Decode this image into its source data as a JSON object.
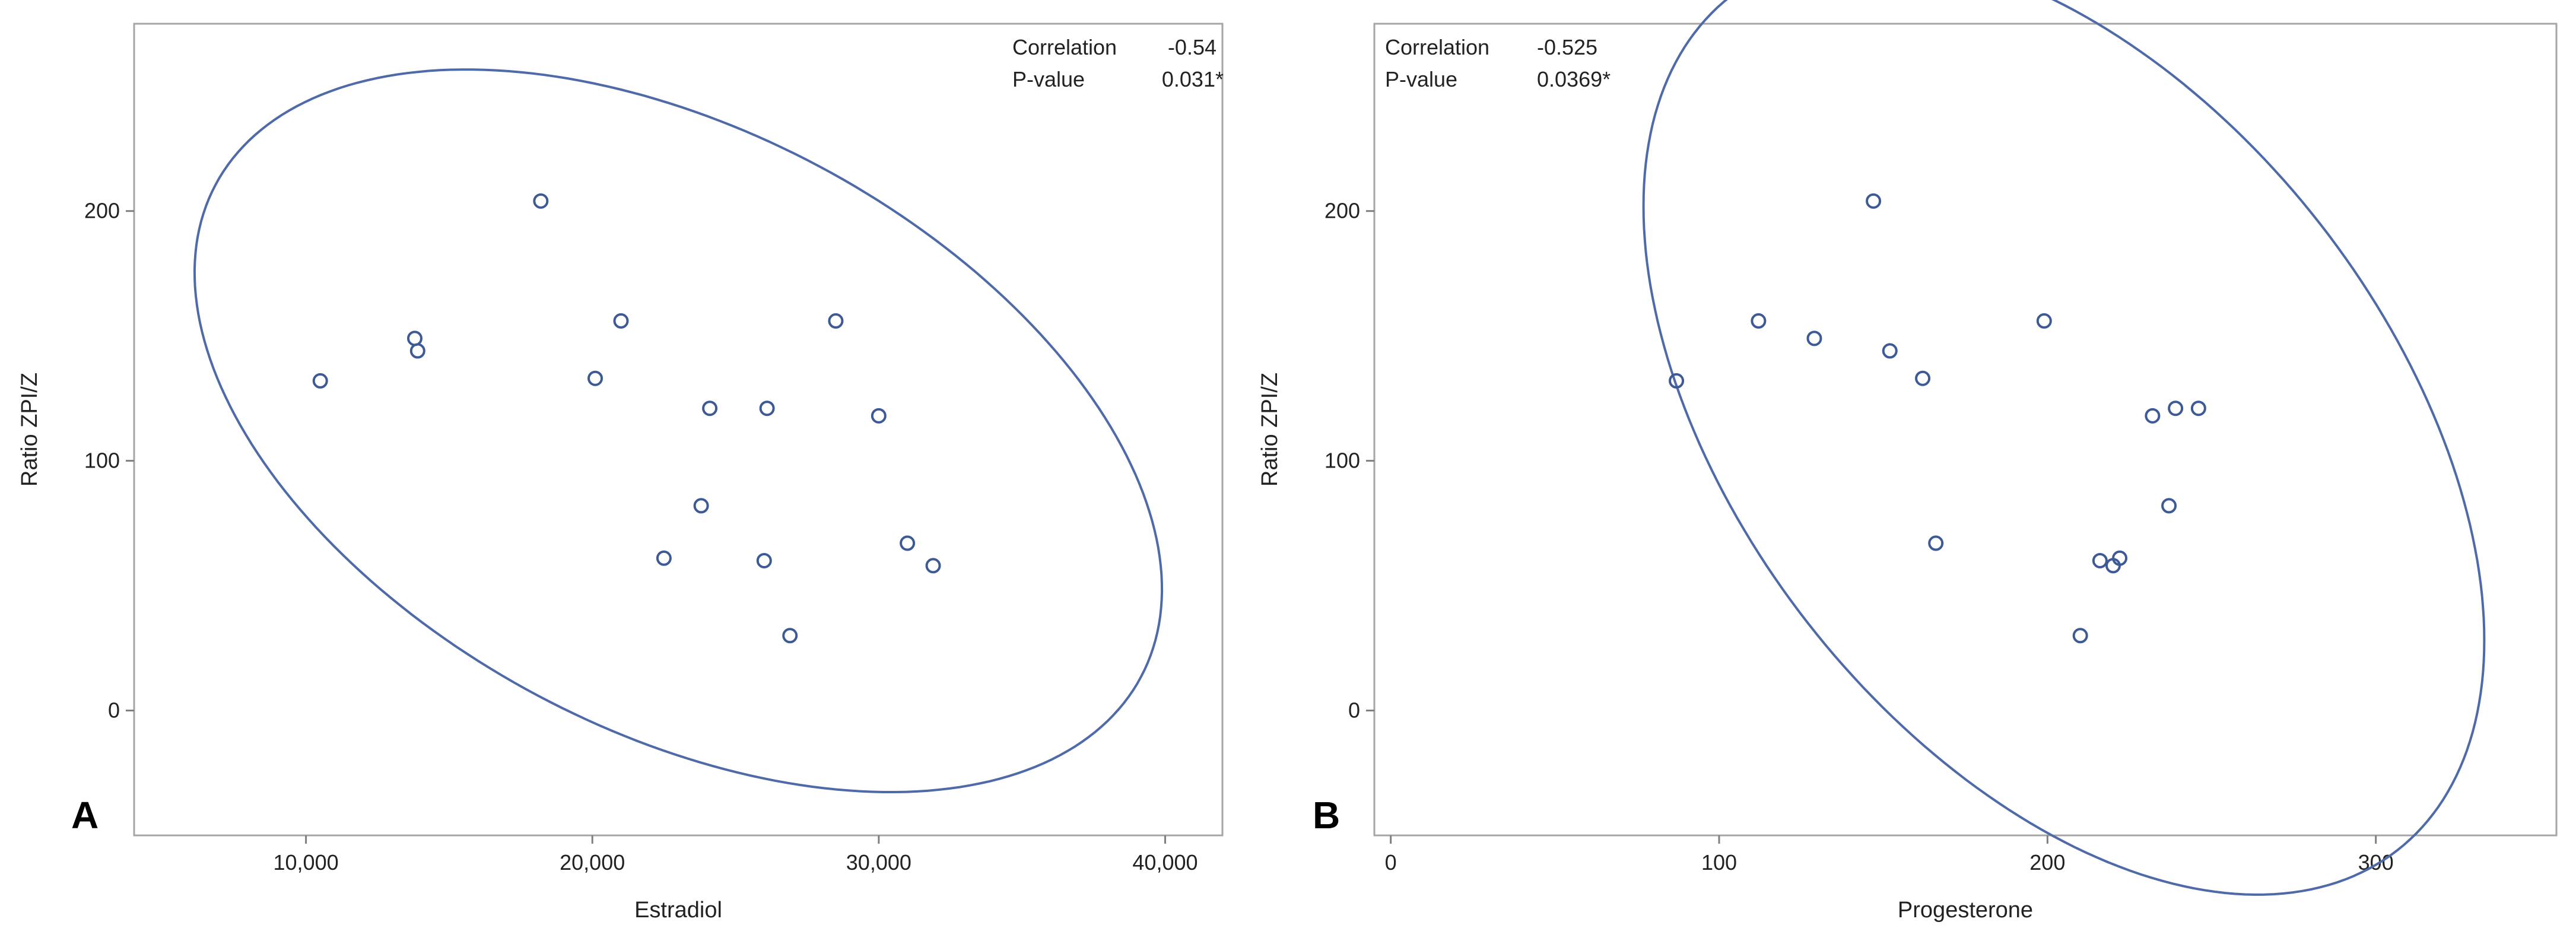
{
  "chart_data": [
    {
      "type": "scatter",
      "panel_label": "A",
      "xlabel": "Estradiol",
      "ylabel": "Ratio ZPI/Z",
      "xlim": [
        4000,
        42000
      ],
      "ylim": [
        -50,
        275
      ],
      "xticks": [
        10000,
        20000,
        30000,
        40000
      ],
      "xtick_labels": [
        "10,000",
        "20,000",
        "30,000",
        "40,000"
      ],
      "yticks": [
        0,
        100,
        200
      ],
      "ytick_labels": [
        "0",
        "100",
        "200"
      ],
      "stats": {
        "correlation_label": "Correlation",
        "correlation_value": "-0.54",
        "pvalue_label": "P-value",
        "pvalue_value": "0.031*"
      },
      "ellipse": {
        "center_x": 23000,
        "center_y": 112,
        "a": 18300,
        "b": 120,
        "angle_deg": -28
      },
      "points": [
        {
          "x": 10500,
          "y": 132
        },
        {
          "x": 13800,
          "y": 149
        },
        {
          "x": 13900,
          "y": 144
        },
        {
          "x": 18200,
          "y": 204
        },
        {
          "x": 20100,
          "y": 133
        },
        {
          "x": 21000,
          "y": 156
        },
        {
          "x": 22500,
          "y": 61
        },
        {
          "x": 23800,
          "y": 82
        },
        {
          "x": 24100,
          "y": 121
        },
        {
          "x": 26000,
          "y": 60
        },
        {
          "x": 26100,
          "y": 121
        },
        {
          "x": 26900,
          "y": 30
        },
        {
          "x": 28500,
          "y": 156
        },
        {
          "x": 30000,
          "y": 118
        },
        {
          "x": 31000,
          "y": 67
        },
        {
          "x": 31900,
          "y": 58
        }
      ]
    },
    {
      "type": "scatter",
      "panel_label": "B",
      "xlabel": "Progesterone",
      "ylabel": "Ratio ZPI/Z",
      "xlim": [
        -5,
        355
      ],
      "ylim": [
        -50,
        275
      ],
      "xticks": [
        0,
        100,
        200,
        300
      ],
      "xtick_labels": [
        "0",
        "100",
        "200",
        "300"
      ],
      "yticks": [
        0,
        100,
        200
      ],
      "ytick_labels": [
        "0",
        "100",
        "200"
      ],
      "stats": {
        "correlation_label": "Correlation",
        "correlation_value": "-0.525",
        "pvalue_label": "P-value",
        "pvalue_value": "0.0369*"
      },
      "ellipse": {
        "center_x": 205,
        "center_y": 115,
        "a": 165,
        "b": 130,
        "angle_deg": -52
      },
      "points": [
        {
          "x": 87,
          "y": 132
        },
        {
          "x": 112,
          "y": 156
        },
        {
          "x": 129,
          "y": 149
        },
        {
          "x": 147,
          "y": 204
        },
        {
          "x": 152,
          "y": 144
        },
        {
          "x": 162,
          "y": 133
        },
        {
          "x": 166,
          "y": 67
        },
        {
          "x": 199,
          "y": 156
        },
        {
          "x": 210,
          "y": 30
        },
        {
          "x": 216,
          "y": 60
        },
        {
          "x": 220,
          "y": 58
        },
        {
          "x": 222,
          "y": 61
        },
        {
          "x": 232,
          "y": 118
        },
        {
          "x": 237,
          "y": 82
        },
        {
          "x": 239,
          "y": 121
        },
        {
          "x": 246,
          "y": 121
        }
      ]
    }
  ]
}
